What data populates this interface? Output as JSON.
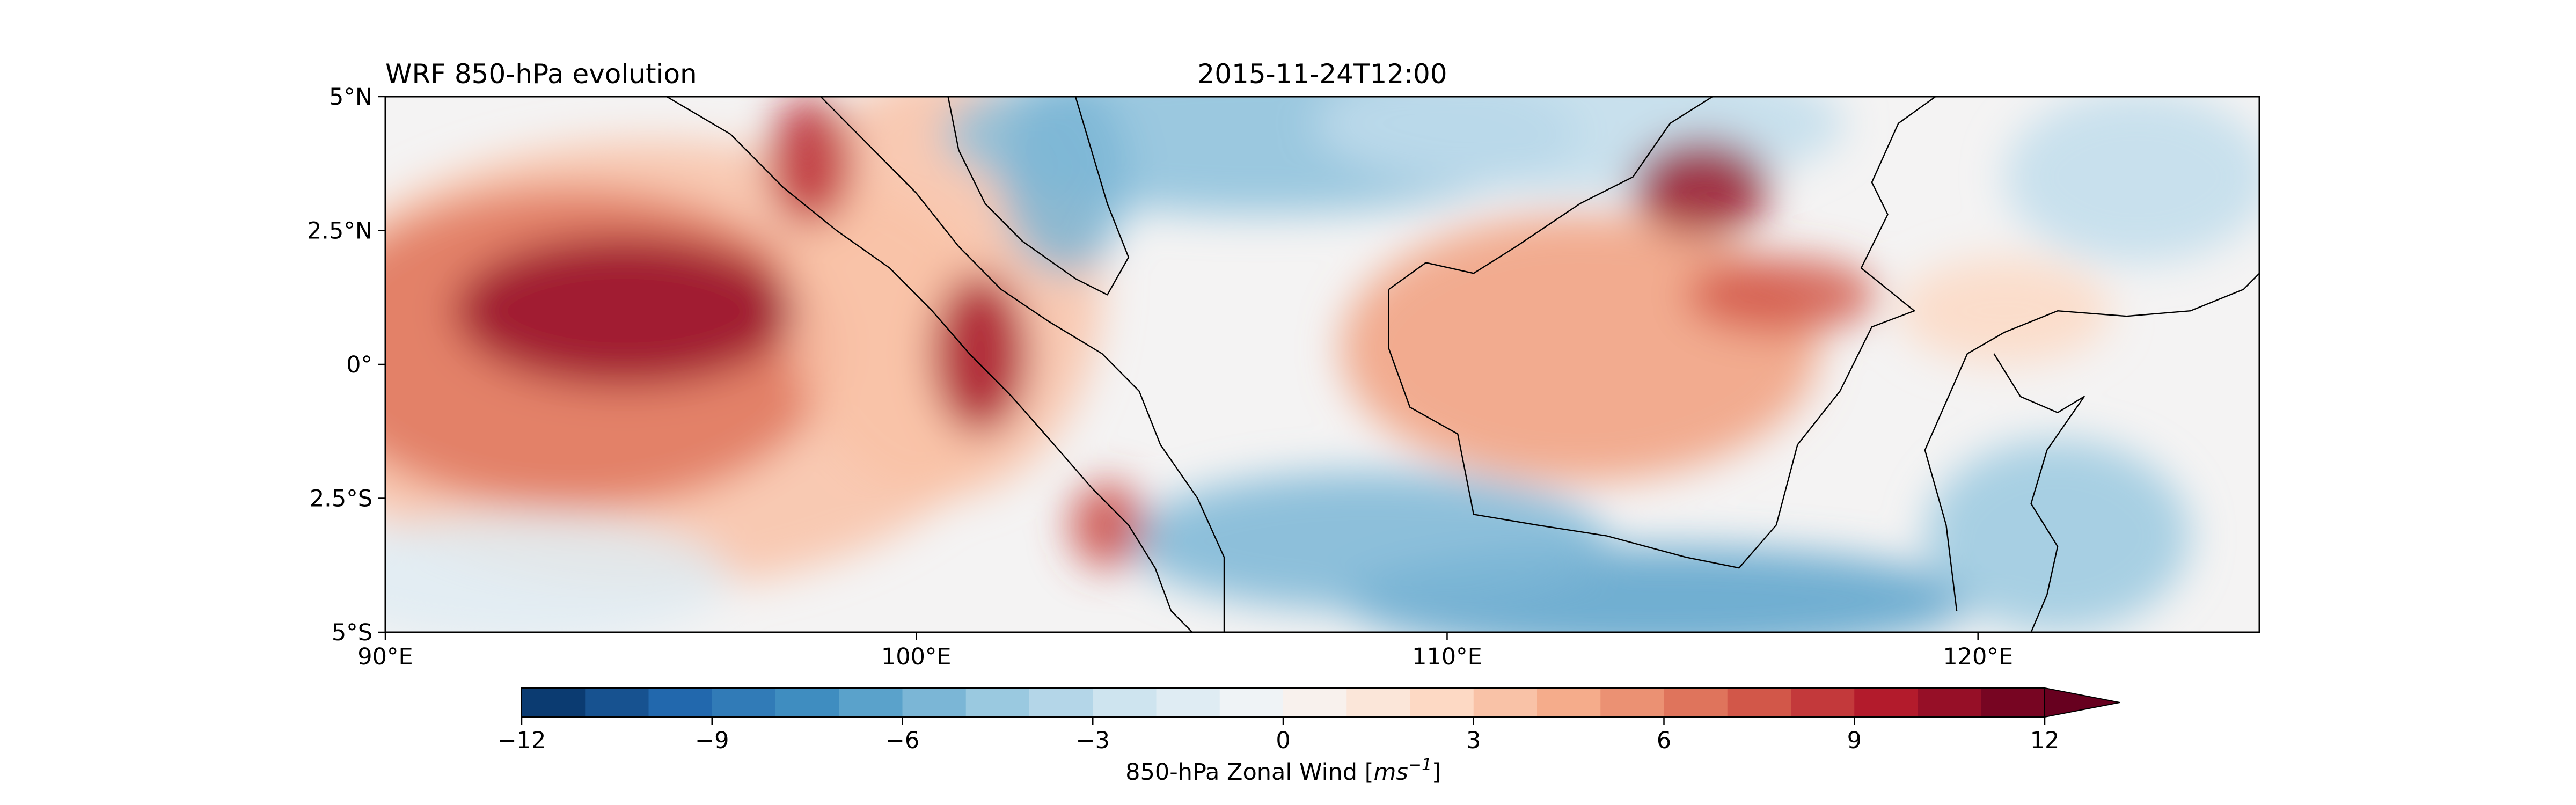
{
  "figure": {
    "title_left": "WRF 850-hPa evolution",
    "title_center": "2015-11-24T12:00"
  },
  "map": {
    "lon_range": [
      90,
      125.3
    ],
    "lat_range": [
      -5,
      5
    ],
    "lon_ticks": [
      {
        "value": 90,
        "label": "90°E"
      },
      {
        "value": 100,
        "label": "100°E"
      },
      {
        "value": 110,
        "label": "110°E"
      },
      {
        "value": 120,
        "label": "120°E"
      }
    ],
    "lat_ticks": [
      {
        "value": 5,
        "label": "5°N"
      },
      {
        "value": 2.5,
        "label": "2.5°N"
      },
      {
        "value": 0,
        "label": "0°"
      },
      {
        "value": -2.5,
        "label": "2.5°S"
      },
      {
        "value": -5,
        "label": "5°S"
      }
    ],
    "field_regions": [
      {
        "name": "west-ocean-westerly-core",
        "lon": 94.5,
        "lat": 1.0,
        "rx": 3.2,
        "ry": 1.4,
        "value": 10.5
      },
      {
        "name": "west-ocean-westerly",
        "lon": 93.5,
        "lat": 0.3,
        "rx": 5.0,
        "ry": 3.0,
        "value": 6.5
      },
      {
        "name": "west-ocean-broad",
        "lon": 95.0,
        "lat": 0.0,
        "rx": 7.0,
        "ry": 4.2,
        "value": 3.5
      },
      {
        "name": "sumatra-west-coast-jet",
        "lon": 101.2,
        "lat": 0.2,
        "rx": 0.9,
        "ry": 1.5,
        "value": 10.0
      },
      {
        "name": "sumatra-north-jet",
        "lon": 98.0,
        "lat": 3.8,
        "rx": 0.8,
        "ry": 1.2,
        "value": 9.0
      },
      {
        "name": "sumatra-south-jet",
        "lon": 103.6,
        "lat": -3.0,
        "rx": 0.7,
        "ry": 0.8,
        "value": 8.0
      },
      {
        "name": "malacca-west",
        "lon": 100.5,
        "lat": 1.5,
        "rx": 3.0,
        "ry": 4.0,
        "value": 3.5
      },
      {
        "name": "malay-east-easterly",
        "lon": 102.8,
        "lat": 3.5,
        "rx": 1.2,
        "ry": 1.8,
        "value": -5.5
      },
      {
        "name": "south-china-sea-easterly",
        "lon": 106.5,
        "lat": 4.3,
        "rx": 6.0,
        "ry": 1.5,
        "value": -5.0
      },
      {
        "name": "south-china-sea-northeast",
        "lon": 112.5,
        "lat": 4.5,
        "rx": 5.0,
        "ry": 1.3,
        "value": -3.0
      },
      {
        "name": "borneo-west-westerly",
        "lon": 112.5,
        "lat": 0.3,
        "rx": 4.5,
        "ry": 2.5,
        "value": 5.0
      },
      {
        "name": "borneo-north-westerly-core",
        "lon": 114.8,
        "lat": 3.3,
        "rx": 1.3,
        "ry": 0.9,
        "value": 10.5
      },
      {
        "name": "borneo-east-westerly",
        "lon": 116.3,
        "lat": 1.3,
        "rx": 1.8,
        "ry": 0.7,
        "value": 7.5
      },
      {
        "name": "java-sea-easterly",
        "lon": 108.5,
        "lat": -3.3,
        "rx": 4.5,
        "ry": 1.3,
        "value": -5.5
      },
      {
        "name": "java-south-easterly",
        "lon": 114.0,
        "lat": -4.4,
        "rx": 6.0,
        "ry": 1.0,
        "value": -6.5
      },
      {
        "name": "southwest-ocean-weak",
        "lon": 92.5,
        "lat": -4.0,
        "rx": 4.0,
        "ry": 1.2,
        "value": -1.5
      },
      {
        "name": "sulawesi-easterly",
        "lon": 121.5,
        "lat": -3.2,
        "rx": 2.5,
        "ry": 1.8,
        "value": -4.5
      },
      {
        "name": "east-pacific-north-easterly",
        "lon": 123.0,
        "lat": 3.5,
        "rx": 2.5,
        "ry": 1.6,
        "value": -3.0
      },
      {
        "name": "sulawesi-north-westerly",
        "lon": 120.5,
        "lat": 1.0,
        "rx": 2.0,
        "ry": 1.0,
        "value": 2.5
      }
    ],
    "coastlines": [
      {
        "name": "sumatra-coastline",
        "points": [
          [
            95.3,
            5.0
          ],
          [
            96.5,
            4.3
          ],
          [
            97.5,
            3.3
          ],
          [
            98.5,
            2.5
          ],
          [
            99.5,
            1.8
          ],
          [
            100.3,
            1.0
          ],
          [
            101.0,
            0.2
          ],
          [
            101.8,
            -0.6
          ],
          [
            102.6,
            -1.5
          ],
          [
            103.3,
            -2.3
          ],
          [
            104.0,
            -3.0
          ],
          [
            104.5,
            -3.8
          ],
          [
            104.8,
            -4.6
          ],
          [
            105.2,
            -5.0
          ]
        ]
      },
      {
        "name": "sumatra-east-coastline",
        "points": [
          [
            98.2,
            5.0
          ],
          [
            99.0,
            4.2
          ],
          [
            100.0,
            3.2
          ],
          [
            100.8,
            2.2
          ],
          [
            101.6,
            1.4
          ],
          [
            102.5,
            0.8
          ],
          [
            103.5,
            0.2
          ],
          [
            104.2,
            -0.5
          ],
          [
            104.6,
            -1.5
          ],
          [
            105.3,
            -2.5
          ],
          [
            105.8,
            -3.6
          ],
          [
            105.8,
            -5.0
          ]
        ]
      },
      {
        "name": "malay-peninsula-coastline",
        "points": [
          [
            100.6,
            5.0
          ],
          [
            100.8,
            4.0
          ],
          [
            101.3,
            3.0
          ],
          [
            102.0,
            2.3
          ],
          [
            103.0,
            1.6
          ],
          [
            103.6,
            1.3
          ],
          [
            104.0,
            2.0
          ],
          [
            103.6,
            3.0
          ],
          [
            103.3,
            4.0
          ],
          [
            103.0,
            5.0
          ]
        ]
      },
      {
        "name": "borneo-coastline",
        "points": [
          [
            108.9,
            1.4
          ],
          [
            108.9,
            0.3
          ],
          [
            109.3,
            -0.8
          ],
          [
            110.2,
            -1.3
          ],
          [
            110.5,
            -2.8
          ],
          [
            111.7,
            -3.0
          ],
          [
            113.0,
            -3.2
          ],
          [
            114.5,
            -3.6
          ],
          [
            115.5,
            -3.8
          ],
          [
            116.2,
            -3.0
          ],
          [
            116.6,
            -1.5
          ],
          [
            117.4,
            -0.5
          ],
          [
            118.0,
            0.7
          ],
          [
            118.8,
            1.0
          ],
          [
            117.8,
            1.8
          ],
          [
            118.3,
            2.8
          ],
          [
            118.0,
            3.4
          ],
          [
            118.5,
            4.5
          ],
          [
            119.2,
            5.0
          ]
        ]
      },
      {
        "name": "borneo-north-coastline",
        "points": [
          [
            108.9,
            1.4
          ],
          [
            109.6,
            1.9
          ],
          [
            110.5,
            1.7
          ],
          [
            111.3,
            2.2
          ],
          [
            112.5,
            3.0
          ],
          [
            113.5,
            3.5
          ],
          [
            114.2,
            4.5
          ],
          [
            115.0,
            5.0
          ]
        ]
      },
      {
        "name": "sulawesi-coastline",
        "points": [
          [
            119.6,
            -4.6
          ],
          [
            119.4,
            -3.0
          ],
          [
            119.0,
            -1.6
          ],
          [
            119.8,
            0.2
          ],
          [
            120.5,
            0.6
          ],
          [
            121.5,
            1.0
          ],
          [
            122.8,
            0.9
          ],
          [
            124.0,
            1.0
          ],
          [
            125.0,
            1.4
          ],
          [
            125.3,
            1.7
          ]
        ]
      },
      {
        "name": "sulawesi-gulf-coastline",
        "points": [
          [
            120.3,
            0.2
          ],
          [
            120.8,
            -0.6
          ],
          [
            121.5,
            -0.9
          ],
          [
            122.0,
            -0.6
          ],
          [
            121.3,
            -1.6
          ],
          [
            121.0,
            -2.6
          ],
          [
            121.5,
            -3.4
          ],
          [
            121.3,
            -4.3
          ],
          [
            121.0,
            -5.0
          ]
        ]
      },
      {
        "name": "java-north-coastline",
        "points": [
          [
            105.7,
            -5.0
          ],
          [
            106.2,
            -5.0
          ]
        ]
      }
    ],
    "colorscale": {
      "min": -12,
      "max": 12,
      "stops": [
        "#053061",
        "#2166ac",
        "#4393c3",
        "#92c5de",
        "#d1e5f0",
        "#f7f7f7",
        "#fddbc7",
        "#f4a582",
        "#d6604d",
        "#b2182b",
        "#67001f"
      ]
    }
  },
  "colorbar": {
    "levels_count": 24,
    "ticks": [
      {
        "value": -12,
        "label": "−12"
      },
      {
        "value": -9,
        "label": "−9"
      },
      {
        "value": -6,
        "label": "−6"
      },
      {
        "value": -3,
        "label": "−3"
      },
      {
        "value": 0,
        "label": "0"
      },
      {
        "value": 3,
        "label": "3"
      },
      {
        "value": 6,
        "label": "6"
      },
      {
        "value": 9,
        "label": "9"
      },
      {
        "value": 12,
        "label": "12"
      }
    ],
    "label_prefix": "850-hPa Zonal Wind [",
    "label_unit": "ms",
    "label_exponent": "−1",
    "label_suffix": "]",
    "extend": "max"
  }
}
